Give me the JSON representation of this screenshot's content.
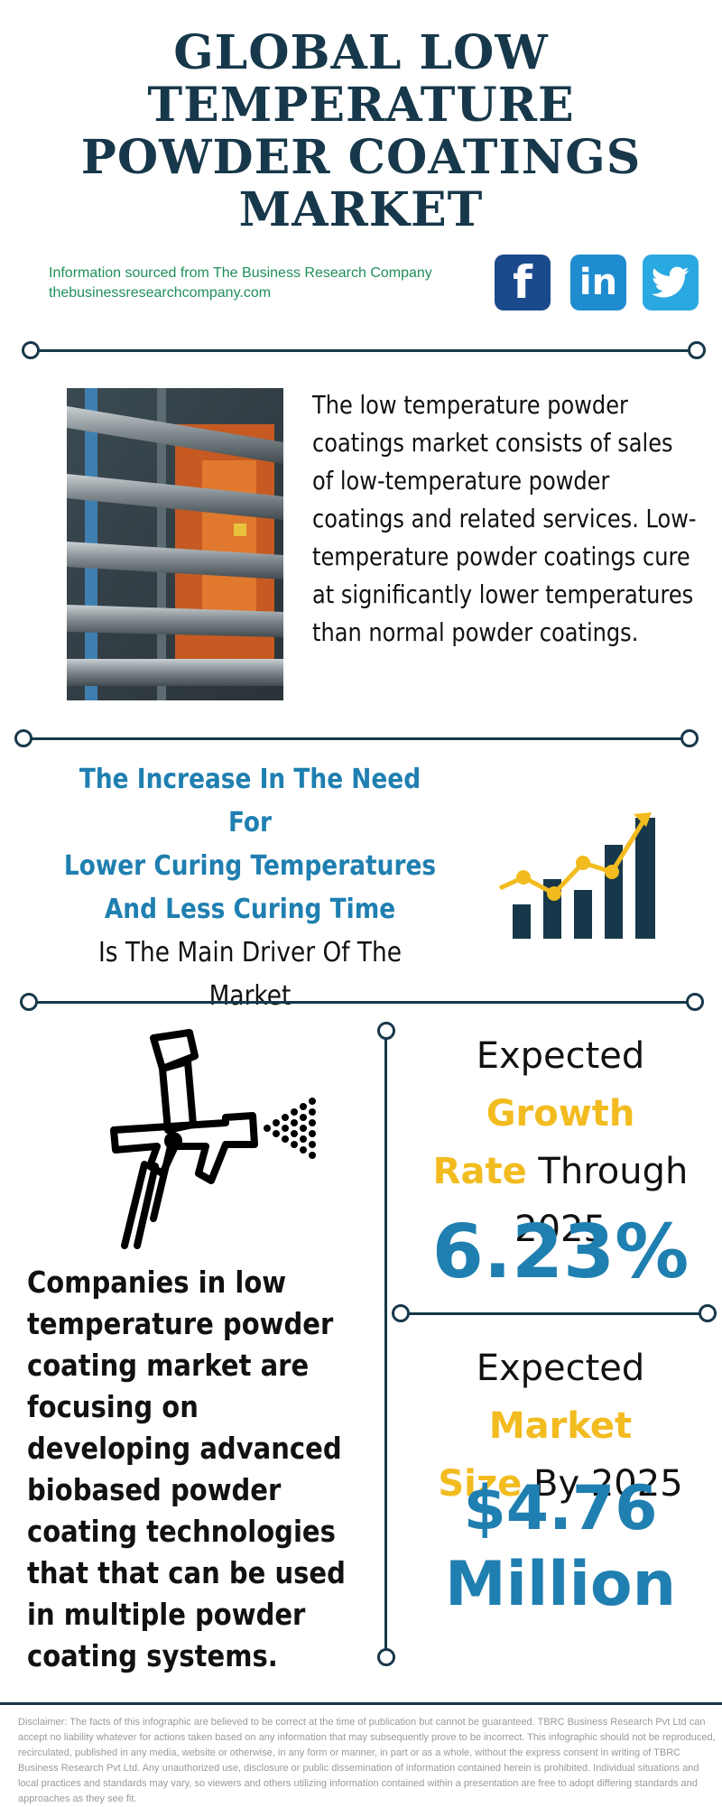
{
  "header": {
    "title_lines": [
      "GLOBAL LOW",
      "TEMPERATURE",
      "POWDER COATINGS",
      "MARKET"
    ],
    "source_line1": "Information sourced from The Business Research Company",
    "source_line2": "thebusinessresearchcompany.com"
  },
  "social": {
    "facebook_label": "f",
    "linkedin_label": "in",
    "twitter_icon": "twitter-bird-icon",
    "colors": {
      "facebook": "#1b4a8c",
      "linkedin": "#1f8ccf",
      "twitter": "#2aa9e0"
    }
  },
  "intro": {
    "text": "The low temperature powder coatings market consists of sales of low-temperature powder coatings and related services. Low-temperature powder coatings cure at significantly lower temperatures than normal powder coatings."
  },
  "driver": {
    "highlight_lines": [
      "The Increase In The Need For",
      "Lower Curing Temperatures",
      "And Less Curing Time"
    ],
    "normal_lines": [
      "Is The Main Driver Of The",
      "Market"
    ]
  },
  "trends": {
    "text": "Companies in low temperature powder coating market are focusing on developing advanced biobased powder coating technologies that that can be used in multiple powder coating systems."
  },
  "growth": {
    "label_pre": "Expected ",
    "label_acc1": "Growth",
    "label_acc2": "Rate",
    "label_post": " Through",
    "label_year": "2025",
    "value": "6.23%"
  },
  "market_size": {
    "label_pre": "Expected ",
    "label_acc1": "Market",
    "label_acc2": "Size",
    "label_post": " By 2025",
    "value_line1": "$4.76",
    "value_line2": "Million"
  },
  "footer": {
    "disclaimer": "Disclaimer: The facts of this infographic are believed to be correct at the time of publication but cannot be guaranteed. TBRC Business Research Pvt Ltd can accept no liability whatever for actions taken based on any information that may subsequently prove to be incorrect. This infographic should not be reproduced, recirculated, published in any media, website or otherwise, in any form or manner, in part or as a whole, without the express consent in writing of TBRC Business Research Pvt Ltd. Any unauthorized use, disclosure or public dissemination of information contained herein is prohibited. Individual situations and local practices and standards may vary, so viewers and others utilizing information contained within a presentation are free to adopt differing standards and approaches as they see fit."
  },
  "colors": {
    "navy": "#17384a",
    "accent_blue": "#1f7fb0",
    "accent_yellow": "#f2bb1f",
    "source_green": "#1f8f5a"
  }
}
